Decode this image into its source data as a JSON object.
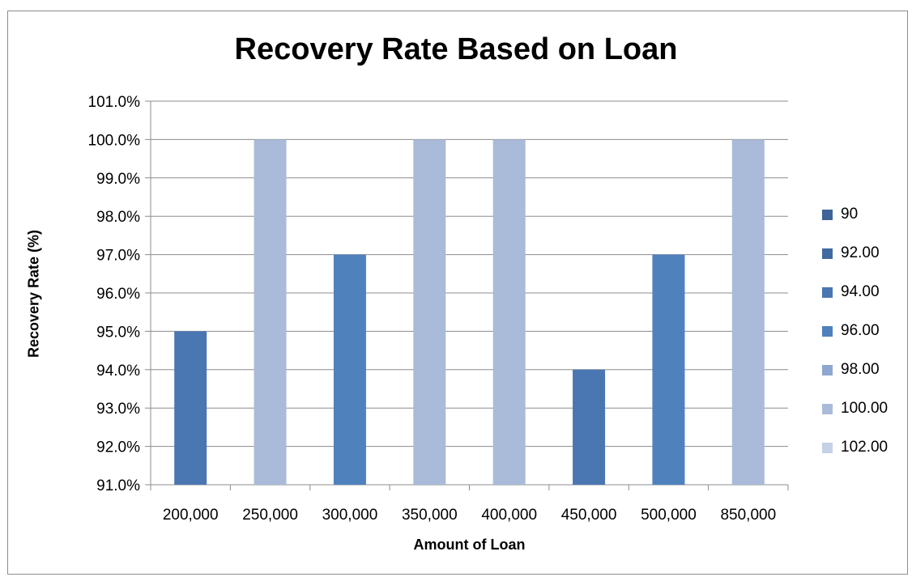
{
  "chart_data": {
    "type": "bar",
    "title": "Recovery Rate Based on Loan",
    "xlabel": "Amount of Loan",
    "ylabel": "Recovery Rate (%)",
    "categories": [
      "200,000",
      "250,000",
      "300,000",
      "350,000",
      "400,000",
      "450,000",
      "500,000",
      "850,000"
    ],
    "values": [
      95.0,
      100.0,
      97.0,
      100.0,
      100.0,
      94.0,
      97.0,
      100.0
    ],
    "ylim": [
      91.0,
      101.0
    ],
    "y_ticks": [
      "91.0%",
      "92.0%",
      "93.0%",
      "94.0%",
      "95.0%",
      "96.0%",
      "97.0%",
      "98.0%",
      "99.0%",
      "100.0%",
      "101.0%"
    ],
    "grid": true,
    "legend_position": "right",
    "color_bands": [
      {
        "label": "90",
        "min": 90,
        "max": 92,
        "color": "#3f6497"
      },
      {
        "label": "92.00",
        "min": 92,
        "max": 94,
        "color": "#4169a1"
      },
      {
        "label": "94.00",
        "min": 94,
        "max": 96,
        "color": "#4a76b2"
      },
      {
        "label": "96.00",
        "min": 96,
        "max": 98,
        "color": "#4f81bd"
      },
      {
        "label": "98.00",
        "min": 98,
        "max": 100,
        "color": "#8ea7cf"
      },
      {
        "label": "100.00",
        "min": 100,
        "max": 102,
        "color": "#aabbd9"
      },
      {
        "label": "102.00",
        "min": 102,
        "max": 104,
        "color": "#c6d1e6"
      }
    ]
  }
}
